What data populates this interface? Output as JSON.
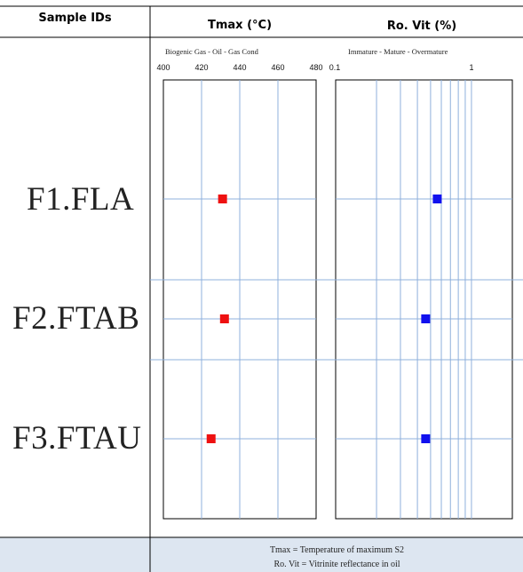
{
  "headers": {
    "sample_ids": "Sample IDs",
    "tmax": "Tmax (°C)",
    "ro_vit": "Ro. Vit (%)"
  },
  "zones": {
    "tmax": "Biogenic Gas - Oil - Gas Cond",
    "ro": "Immature - Mature - Overmature"
  },
  "samples": [
    "F1.FLA",
    "F2.FTAB",
    "F3.FTAU"
  ],
  "chart_data": [
    {
      "type": "scatter",
      "xlabel": "Tmax (°C)",
      "xlim": [
        400,
        480
      ],
      "xticks": [
        "400",
        "420",
        "440",
        "460",
        "480"
      ],
      "categories": [
        "F1.FLA",
        "F2.FTAB",
        "F3.FTAU"
      ],
      "values": [
        431,
        432,
        425
      ],
      "marker_color": "#ee1111",
      "grid": true
    },
    {
      "type": "scatter",
      "xlabel": "Ro. Vit (%)",
      "x_scale": "log",
      "xlim": [
        0.1,
        2
      ],
      "xticks": [
        "0.1",
        "1"
      ],
      "categories": [
        "F1.FLA",
        "F2.FTAB",
        "F3.FTAU"
      ],
      "values": [
        0.56,
        0.46,
        0.46
      ],
      "marker_color": "#1111ee",
      "grid": true
    }
  ],
  "footer": {
    "line1": "Tmax = Temperature of maximum S2",
    "line2": "Ro. Vit = Vitrinite reflectance in oil"
  },
  "colors": {
    "grid": "#8fb0dc",
    "footer_bg": "#dde6f1",
    "tmax_marker": "#ee1111",
    "ro_marker": "#1111ee"
  }
}
